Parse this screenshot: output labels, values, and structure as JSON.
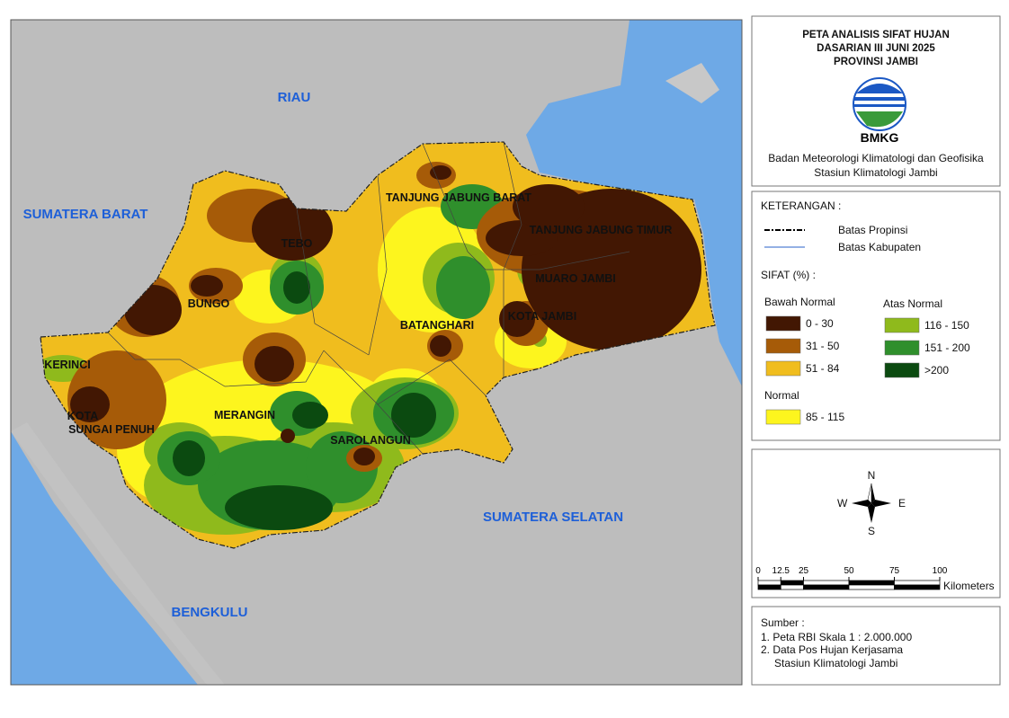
{
  "title": [
    "PETA ANALISIS SIFAT HUJAN",
    "DASARIAN III JUNI 2025",
    "PROVINSI JAMBI"
  ],
  "logo_text": "BMKG",
  "agency": [
    "Badan Meteorologi Klimatologi dan Geofisika",
    "Stasiun Klimatologi Jambi"
  ],
  "legend": {
    "heading": "KETERANGAN :",
    "lines": [
      {
        "label": "Batas Propinsi"
      },
      {
        "label": "Batas Kabupaten"
      }
    ],
    "sifat_heading": "SIFAT (%) :",
    "groups": [
      {
        "name": "Bawah Normal",
        "classes": [
          {
            "label": "0 - 30",
            "color": "#421703"
          },
          {
            "label": "31 - 50",
            "color": "#a65b08"
          },
          {
            "label": "51 - 84",
            "color": "#f0bd1e"
          }
        ]
      },
      {
        "name": "Atas Normal",
        "classes": [
          {
            "label": "116 - 150",
            "color": "#8fba1c"
          },
          {
            "label": "151 - 200",
            "color": "#2f8f2c"
          },
          {
            "label": ">200",
            "color": "#0b4a10"
          }
        ]
      },
      {
        "name": "Normal",
        "classes": [
          {
            "label": "85 - 115",
            "color": "#fdf51e"
          }
        ]
      }
    ]
  },
  "compass": {
    "n": "N",
    "s": "S",
    "e": "E",
    "w": "W"
  },
  "scale": {
    "ticks": [
      0,
      12.5,
      25,
      50,
      75,
      100
    ],
    "unit": "Kilometers"
  },
  "source": {
    "heading": "Sumber :",
    "items": [
      "1. Peta RBI Skala 1 : 2.000.000",
      "2. Data Pos Hujan Kerjasama",
      "Stasiun Klimatologi Jambi"
    ]
  },
  "map_labels": {
    "provinces": [
      "RIAU",
      "SUMATERA BARAT",
      "SUMATERA SELATAN",
      "BENGKULU"
    ],
    "regencies": [
      "TANJUNG JABUNG BARAT",
      "TANJUNG JABUNG TIMUR",
      "TEBO",
      "BUNGO",
      "MUARO JAMBI",
      "KOTA JAMBI",
      "BATANGHARI",
      "KERINCI",
      "KOTA",
      "SUNGAI PENUH",
      "MERANGIN",
      "SAROLANGUN"
    ]
  }
}
